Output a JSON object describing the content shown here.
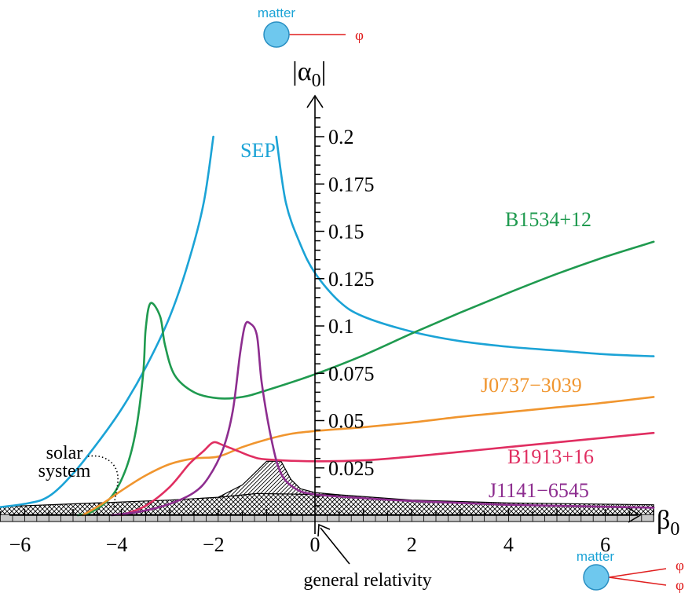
{
  "chart_data": {
    "type": "line",
    "xlabel": "β",
    "xlabel_sub": "0",
    "ylabel": "|α",
    "ylabel_sub": "0",
    "ylabel_close": "|",
    "xlim": [
      -7.6,
      7.8
    ],
    "ylim": [
      0,
      0.215
    ],
    "x_ticks": [
      -6,
      -4,
      -2,
      0,
      2,
      4,
      6
    ],
    "x_tick_labels": [
      "−6",
      "−4",
      "−2",
      "0",
      "2",
      "4",
      "6"
    ],
    "y_ticks": [
      0.025,
      0.05,
      0.075,
      0.1,
      0.125,
      0.15,
      0.175,
      0.2
    ],
    "y_tick_labels": [
      "0.025",
      "0.05",
      "0.075",
      "0.1",
      "0.125",
      "0.15",
      "0.175",
      "0.2"
    ],
    "grid": false,
    "colors": {
      "SEP": "#1ba3d6",
      "B1534+12": "#1f9a4f",
      "J0737-3039": "#f0952e",
      "B1913+16": "#e02e61",
      "J1141-6545": "#8d2d8f",
      "phi": "#e01f1f",
      "matter": "#6ec8ee"
    },
    "series": [
      {
        "name": "SEP",
        "segments": [
          [
            [
              -7.0,
              0.003
            ],
            [
              -6.0,
              0.006
            ],
            [
              -5.5,
              0.01
            ],
            [
              -5.0,
              0.022
            ],
            [
              -4.5,
              0.038
            ],
            [
              -4.0,
              0.056
            ],
            [
              -3.5,
              0.078
            ],
            [
              -3.0,
              0.105
            ],
            [
              -2.6,
              0.135
            ],
            [
              -2.3,
              0.165
            ],
            [
              -2.1,
              0.2
            ]
          ],
          [
            [
              -0.8,
              0.2
            ],
            [
              -0.6,
              0.165
            ],
            [
              -0.3,
              0.143
            ],
            [
              0.0,
              0.128
            ],
            [
              0.5,
              0.113
            ],
            [
              1.0,
              0.105
            ],
            [
              2.0,
              0.097
            ],
            [
              3.0,
              0.092
            ],
            [
              4.0,
              0.089
            ],
            [
              5.0,
              0.087
            ],
            [
              6.0,
              0.085
            ],
            [
              7.0,
              0.084
            ]
          ]
        ]
      },
      {
        "name": "B1534+12",
        "segments": [
          [
            [
              -4.9,
              0.0
            ],
            [
              -4.6,
              0.002
            ],
            [
              -4.2,
              0.01
            ],
            [
              -3.9,
              0.025
            ],
            [
              -3.7,
              0.045
            ],
            [
              -3.55,
              0.075
            ],
            [
              -3.5,
              0.098
            ],
            [
              -3.4,
              0.112
            ],
            [
              -3.2,
              0.105
            ],
            [
              -3.1,
              0.09
            ],
            [
              -2.9,
              0.074
            ],
            [
              -2.5,
              0.065
            ],
            [
              -2.0,
              0.0618
            ],
            [
              -1.5,
              0.0625
            ],
            [
              -1.0,
              0.066
            ],
            [
              0.0,
              0.0745
            ],
            [
              1.0,
              0.0845
            ],
            [
              2.0,
              0.096
            ],
            [
              3.0,
              0.107
            ],
            [
              4.0,
              0.1175
            ],
            [
              5.0,
              0.1275
            ],
            [
              6.0,
              0.1365
            ],
            [
              7.0,
              0.1445
            ]
          ]
        ]
      },
      {
        "name": "J0737-3039",
        "segments": [
          [
            [
              -4.8,
              0.0
            ],
            [
              -4.4,
              0.006
            ],
            [
              -4.0,
              0.013
            ],
            [
              -3.5,
              0.021
            ],
            [
              -3.0,
              0.027
            ],
            [
              -2.5,
              0.03
            ],
            [
              -2.0,
              0.031
            ],
            [
              -1.5,
              0.036
            ],
            [
              -1.0,
              0.04
            ],
            [
              -0.5,
              0.043
            ],
            [
              0.0,
              0.0445
            ],
            [
              1.0,
              0.0465
            ],
            [
              2.0,
              0.049
            ],
            [
              3.0,
              0.052
            ],
            [
              4.0,
              0.0545
            ],
            [
              5.0,
              0.057
            ],
            [
              6.0,
              0.0595
            ],
            [
              7.0,
              0.0625
            ]
          ]
        ]
      },
      {
        "name": "B1913+16",
        "segments": [
          [
            [
              -4.0,
              0.0
            ],
            [
              -3.5,
              0.005
            ],
            [
              -3.0,
              0.015
            ],
            [
              -2.6,
              0.027
            ],
            [
              -2.3,
              0.034
            ],
            [
              -2.1,
              0.0385
            ],
            [
              -1.9,
              0.037
            ],
            [
              -1.6,
              0.034
            ],
            [
              -1.3,
              0.031
            ],
            [
              -1.0,
              0.0295
            ],
            [
              0.0,
              0.0285
            ],
            [
              1.0,
              0.029
            ],
            [
              2.0,
              0.031
            ],
            [
              3.0,
              0.0335
            ],
            [
              4.0,
              0.036
            ],
            [
              5.0,
              0.0385
            ],
            [
              6.0,
              0.041
            ],
            [
              7.0,
              0.0435
            ]
          ]
        ]
      },
      {
        "name": "J1141-6545",
        "segments": [
          [
            [
              -4.2,
              0.0
            ],
            [
              -3.6,
              0.002
            ],
            [
              -3.0,
              0.006
            ],
            [
              -2.5,
              0.012
            ],
            [
              -2.2,
              0.02
            ],
            [
              -1.9,
              0.035
            ],
            [
              -1.7,
              0.055
            ],
            [
              -1.55,
              0.085
            ],
            [
              -1.45,
              0.1
            ],
            [
              -1.35,
              0.1015
            ],
            [
              -1.2,
              0.095
            ],
            [
              -1.1,
              0.07
            ],
            [
              -0.9,
              0.04
            ],
            [
              -0.7,
              0.022
            ],
            [
              -0.4,
              0.014
            ],
            [
              0.0,
              0.011
            ],
            [
              1.0,
              0.009
            ],
            [
              2.0,
              0.0075
            ],
            [
              3.0,
              0.0065
            ],
            [
              4.0,
              0.0055
            ],
            [
              5.0,
              0.005
            ],
            [
              6.0,
              0.0045
            ],
            [
              7.0,
              0.004
            ]
          ]
        ]
      }
    ],
    "regions": {
      "solar_system": [
        [
          -7.0,
          0.0
        ],
        [
          -7.0,
          0.004
        ],
        [
          -5.0,
          0.006
        ],
        [
          -3.0,
          0.008
        ],
        [
          -2.0,
          0.0095
        ],
        [
          -1.2,
          0.0115
        ],
        [
          0.5,
          0.0108
        ],
        [
          2.0,
          0.008
        ],
        [
          4.0,
          0.0065
        ],
        [
          7.0,
          0.0055
        ],
        [
          7.0,
          0.0
        ]
      ],
      "hatched": [
        [
          -2.0,
          0.0095
        ],
        [
          -1.5,
          0.016
        ],
        [
          -1.2,
          0.0235
        ],
        [
          -1.0,
          0.0285
        ],
        [
          -0.7,
          0.0285
        ],
        [
          -0.5,
          0.019
        ],
        [
          -0.3,
          0.014
        ],
        [
          0.0,
          0.012
        ],
        [
          0.5,
          0.0108
        ],
        [
          -1.2,
          0.0115
        ]
      ]
    },
    "series_labels": {
      "SEP": "SEP",
      "B1534+12": "B1534+12",
      "J0737-3039": "J0737−3039",
      "B1913+16": "B1913+16",
      "J1141-6545": "J1141−6545"
    },
    "annotations": {
      "solar_system": [
        "solar",
        "system"
      ],
      "general_relativity": "general relativity",
      "matter_top": "matter",
      "matter_bottom": "matter",
      "phi": "φ"
    }
  }
}
